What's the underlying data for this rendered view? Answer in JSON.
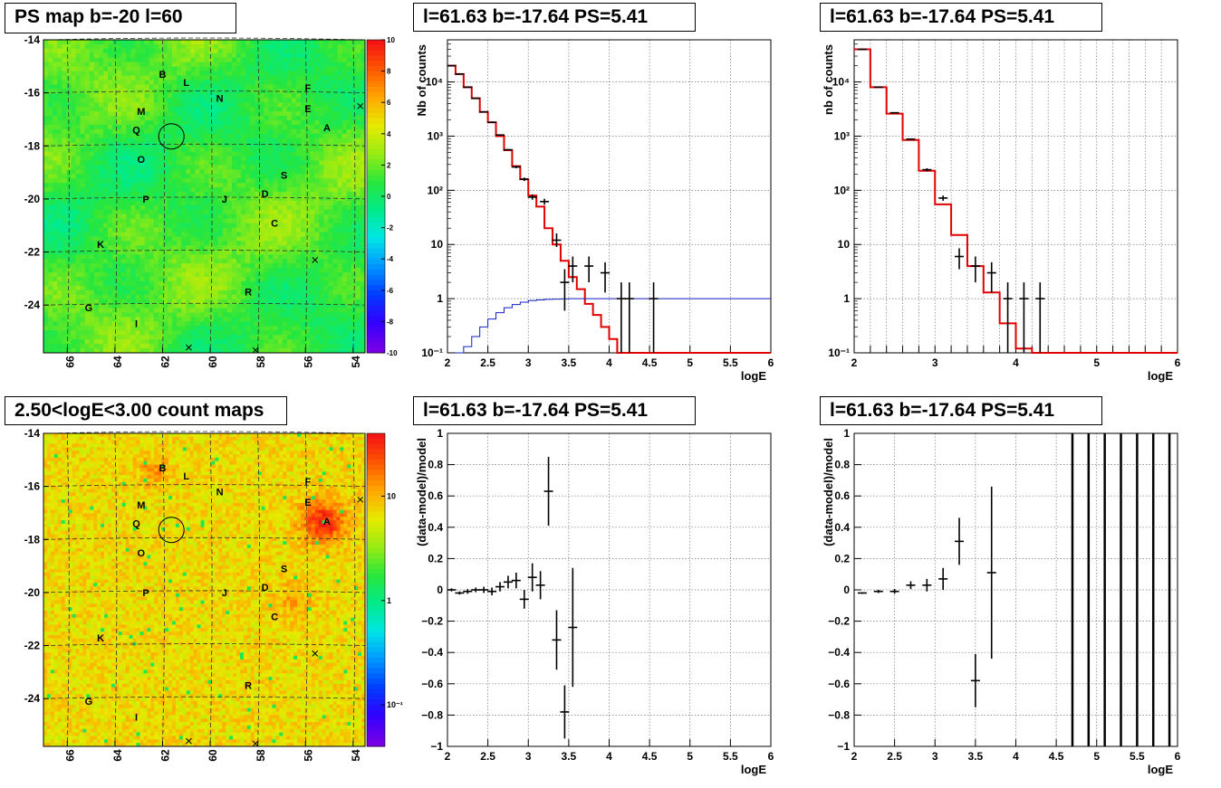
{
  "titles": {
    "map_top": "PS map b=-20 l=60",
    "map_bottom": "2.50<logE<3.00 count maps",
    "spec_left": "l=61.63 b=-17.64 PS=5.41",
    "spec_right": "l=61.63 b=-17.64 PS=5.41",
    "resid_left": "l=61.63 b=-17.64 PS=5.41",
    "resid_right": "l=61.63 b=-17.64 PS=5.41"
  },
  "chart_data": [
    {
      "id": "ps_map",
      "type": "heatmap",
      "title": "PS map b=-20 l=60",
      "xlim": [
        67,
        53.5
      ],
      "ylim": [
        -25.8,
        -14
      ],
      "x_ticks": [
        66,
        64,
        62,
        60,
        58,
        56,
        54
      ],
      "y_ticks": [
        -14,
        -16,
        -18,
        -20,
        -22,
        -24
      ],
      "colorbar": {
        "scale": "linear",
        "range": [
          -10,
          10
        ],
        "ticks": [
          10,
          8,
          6,
          4,
          2,
          0,
          -2,
          -4,
          -6,
          -8,
          -10
        ]
      },
      "sources": [
        {
          "label": "B",
          "l": 62.0,
          "b": -15.3
        },
        {
          "label": "L",
          "l": 61.0,
          "b": -15.6
        },
        {
          "label": "N",
          "l": 59.6,
          "b": -16.2
        },
        {
          "label": "F",
          "l": 55.9,
          "b": -15.8
        },
        {
          "label": "E",
          "l": 55.9,
          "b": -16.6
        },
        {
          "label": "M",
          "l": 62.9,
          "b": -16.7
        },
        {
          "label": "A",
          "l": 55.1,
          "b": -17.3
        },
        {
          "label": "Q",
          "l": 63.1,
          "b": -17.4
        },
        {
          "label": "O",
          "l": 62.9,
          "b": -18.5
        },
        {
          "label": "S",
          "l": 56.9,
          "b": -19.1
        },
        {
          "label": "D",
          "l": 57.7,
          "b": -19.8
        },
        {
          "label": "P",
          "l": 62.7,
          "b": -20.0
        },
        {
          "label": "J",
          "l": 59.4,
          "b": -20.0
        },
        {
          "label": "C",
          "l": 57.3,
          "b": -20.9
        },
        {
          "label": "K",
          "l": 64.6,
          "b": -21.7
        },
        {
          "label": "R",
          "l": 58.4,
          "b": -23.5
        },
        {
          "label": "G",
          "l": 65.1,
          "b": -24.1
        },
        {
          "label": "I",
          "l": 63.1,
          "b": -24.7
        }
      ]
    },
    {
      "id": "count_map",
      "type": "heatmap",
      "title": "2.50<logE<3.00 count maps",
      "xlim": [
        67,
        53.5
      ],
      "ylim": [
        -25.8,
        -14
      ],
      "x_ticks": [
        66,
        64,
        62,
        60,
        58,
        56,
        54
      ],
      "y_ticks": [
        -14,
        -16,
        -18,
        -20,
        -22,
        -24
      ],
      "colorbar": {
        "scale": "log",
        "range": [
          0.04,
          40
        ],
        "ticks": [
          "10",
          "1",
          "10⁻¹"
        ]
      }
    },
    {
      "id": "spectrum_left",
      "type": "line",
      "title": "l=61.63 b=-17.64 PS=5.41",
      "xlabel": "logE",
      "ylabel": "Nb of counts",
      "xlim": [
        2,
        6
      ],
      "ylim": [
        0.1,
        60000
      ],
      "yscale": "log",
      "x_ticks": [
        "2",
        "2.5",
        "3",
        "3.5",
        "4",
        "4.5",
        "5",
        "5.5",
        "6"
      ],
      "y_ticks": [
        "10⁻¹",
        "1",
        "10",
        "10²",
        "10³",
        "10⁴"
      ],
      "series": [
        {
          "color": "#e00000",
          "style": "step",
          "bin_width": 0.1,
          "bin_centers": [
            2.05,
            2.15,
            2.25,
            2.35,
            2.45,
            2.55,
            2.65,
            2.75,
            2.85,
            2.95,
            3.05,
            3.15,
            3.25,
            3.35,
            3.45,
            3.55,
            3.65,
            3.75,
            3.85,
            3.95,
            4.05,
            4.15,
            4.25,
            4.35,
            4.45,
            4.55,
            4.65,
            4.75,
            4.85,
            4.95,
            5.05,
            5.15,
            5.25,
            5.35,
            5.45,
            5.55,
            5.65,
            5.75,
            5.85,
            5.95
          ],
          "values": [
            20000,
            14000,
            8000,
            5000,
            2800,
            1800,
            1000,
            550,
            280,
            160,
            80,
            50,
            20,
            10,
            5,
            2.5,
            1.5,
            0.8,
            0.5,
            0.3,
            0.18,
            0.1,
            0.1,
            0.1,
            0.1,
            0.1,
            0.1,
            0.1,
            0.1,
            0.1,
            0.1,
            0.1,
            0.1,
            0.1,
            0.1,
            0.1,
            0.1,
            0.1,
            0.1,
            0.1
          ]
        },
        {
          "color": "#1020c0",
          "style": "step",
          "bin_width": 0.1,
          "bin_centers": [
            2.15,
            2.25,
            2.35,
            2.45,
            2.55,
            2.65,
            2.75,
            2.85,
            2.95,
            3.05,
            3.15,
            3.25,
            3.35,
            3.45,
            3.55,
            3.65,
            3.75,
            3.85,
            3.95,
            4.05,
            4.15,
            4.25,
            4.35,
            4.45,
            4.55,
            4.65,
            4.75,
            4.85,
            4.95,
            5.05,
            5.15,
            5.25,
            5.35,
            5.45,
            5.55,
            5.65,
            5.75,
            5.85,
            5.95
          ],
          "values": [
            0.1,
            0.13,
            0.2,
            0.3,
            0.42,
            0.55,
            0.68,
            0.78,
            0.86,
            0.92,
            0.95,
            0.97,
            0.98,
            0.99,
            1,
            1,
            1,
            1,
            1,
            1,
            1,
            1,
            1,
            1,
            1,
            1,
            1,
            1,
            1,
            1,
            1,
            1,
            1,
            1,
            1,
            1,
            1,
            1,
            1
          ]
        },
        {
          "color": "#000000",
          "style": "errorbar",
          "points": [
            {
              "x": 2.05,
              "y": 20000,
              "lo": 19800,
              "hi": 20200
            },
            {
              "x": 2.15,
              "y": 14000,
              "lo": 13900,
              "hi": 14100
            },
            {
              "x": 2.25,
              "y": 8000,
              "lo": 7900,
              "hi": 8100
            },
            {
              "x": 2.35,
              "y": 5000,
              "lo": 4930,
              "hi": 5070
            },
            {
              "x": 2.45,
              "y": 2800,
              "lo": 2750,
              "hi": 2850
            },
            {
              "x": 2.55,
              "y": 1800,
              "lo": 1760,
              "hi": 1840
            },
            {
              "x": 2.65,
              "y": 1050,
              "lo": 1020,
              "hi": 1080
            },
            {
              "x": 2.75,
              "y": 560,
              "lo": 540,
              "hi": 580
            },
            {
              "x": 2.85,
              "y": 270,
              "lo": 255,
              "hi": 285
            },
            {
              "x": 2.95,
              "y": 160,
              "lo": 148,
              "hi": 172
            },
            {
              "x": 3.05,
              "y": 75,
              "lo": 67,
              "hi": 84
            },
            {
              "x": 3.2,
              "y": 62,
              "lo": 54,
              "hi": 70
            },
            {
              "x": 3.35,
              "y": 12,
              "lo": 9,
              "hi": 16
            },
            {
              "x": 3.45,
              "y": 2,
              "lo": 0.6,
              "hi": 3.5
            },
            {
              "x": 3.55,
              "y": 4,
              "lo": 2,
              "hi": 6
            },
            {
              "x": 3.75,
              "y": 4,
              "lo": 2,
              "hi": 6
            },
            {
              "x": 3.95,
              "y": 3,
              "lo": 1.3,
              "hi": 4.7
            },
            {
              "x": 4.15,
              "y": 1,
              "lo": 0.1,
              "hi": 2
            },
            {
              "x": 4.25,
              "y": 1,
              "lo": 0.1,
              "hi": 2
            },
            {
              "x": 4.55,
              "y": 1,
              "lo": 0.1,
              "hi": 2
            }
          ]
        }
      ]
    },
    {
      "id": "spectrum_right",
      "type": "line",
      "title": "l=61.63 b=-17.64 PS=5.41",
      "xlabel": "logE",
      "ylabel": "nb of counts",
      "xlim": [
        2,
        6
      ],
      "ylim": [
        0.1,
        60000
      ],
      "yscale": "log",
      "x_ticks": [
        "2",
        "2.2",
        "2.4",
        "2.6",
        "2.8",
        "3",
        "3.2",
        "3.4",
        "3.6",
        "3.8",
        "4",
        "4.2",
        "4.4",
        "4.6",
        "4.8",
        "5",
        "5.2",
        "5.4",
        "5.6",
        "5.8",
        "6"
      ],
      "y_ticks": [
        "10⁻¹",
        "1",
        "10",
        "10²",
        "10³",
        "10⁴"
      ],
      "series": [
        {
          "color": "#e00000",
          "style": "step",
          "bin_width": 0.2,
          "bin_centers": [
            2.1,
            2.3,
            2.5,
            2.7,
            2.9,
            3.1,
            3.3,
            3.5,
            3.7,
            3.9,
            4.1,
            4.3,
            4.5,
            4.7,
            4.9,
            5.1,
            5.3,
            5.5,
            5.7,
            5.9
          ],
          "values": [
            40000,
            8000,
            2600,
            850,
            230,
            55,
            15,
            4,
            1.3,
            0.35,
            0.12,
            0.1,
            0.1,
            0.1,
            0.1,
            0.1,
            0.1,
            0.1,
            0.1,
            0.1
          ]
        },
        {
          "color": "#000000",
          "style": "errorbar",
          "points": [
            {
              "x": 2.1,
              "y": 40000,
              "lo": 39800,
              "hi": 40200
            },
            {
              "x": 2.3,
              "y": 8000,
              "lo": 7910,
              "hi": 8090
            },
            {
              "x": 2.5,
              "y": 2700,
              "lo": 2650,
              "hi": 2750
            },
            {
              "x": 2.7,
              "y": 880,
              "lo": 850,
              "hi": 910
            },
            {
              "x": 2.9,
              "y": 240,
              "lo": 225,
              "hi": 255
            },
            {
              "x": 3.1,
              "y": 72,
              "lo": 64,
              "hi": 80
            },
            {
              "x": 3.3,
              "y": 6,
              "lo": 3.5,
              "hi": 8.5
            },
            {
              "x": 3.5,
              "y": 4,
              "lo": 2,
              "hi": 6
            },
            {
              "x": 3.7,
              "y": 3,
              "lo": 1.3,
              "hi": 4.7
            },
            {
              "x": 3.9,
              "y": 1,
              "lo": 0.1,
              "hi": 2
            },
            {
              "x": 4.1,
              "y": 1,
              "lo": 0.1,
              "hi": 2
            },
            {
              "x": 4.3,
              "y": 1,
              "lo": 0.1,
              "hi": 2
            }
          ]
        }
      ]
    },
    {
      "id": "residual_left",
      "type": "scatter",
      "title": "l=61.63 b=-17.64 PS=5.41",
      "xlabel": "logE",
      "ylabel": "(data-model)/model",
      "xlim": [
        2,
        6
      ],
      "ylim": [
        -1,
        1
      ],
      "x_ticks": [
        "2",
        "2.5",
        "3",
        "3.5",
        "4",
        "4.5",
        "5",
        "5.5",
        "6"
      ],
      "y_ticks": [
        "1",
        "0.8",
        "0.6",
        "0.4",
        "0.2",
        "0",
        "−0.2",
        "−0.4",
        "−0.6",
        "−0.8",
        "−1"
      ],
      "points": [
        {
          "x": 2.05,
          "y": 0.0,
          "err": 0.01
        },
        {
          "x": 2.15,
          "y": -0.02,
          "err": 0.01
        },
        {
          "x": 2.25,
          "y": -0.01,
          "err": 0.015
        },
        {
          "x": 2.35,
          "y": 0.0,
          "err": 0.015
        },
        {
          "x": 2.45,
          "y": 0.0,
          "err": 0.02
        },
        {
          "x": 2.55,
          "y": -0.01,
          "err": 0.025
        },
        {
          "x": 2.65,
          "y": 0.02,
          "err": 0.03
        },
        {
          "x": 2.75,
          "y": 0.05,
          "err": 0.04
        },
        {
          "x": 2.85,
          "y": 0.06,
          "err": 0.05
        },
        {
          "x": 2.95,
          "y": -0.06,
          "err": 0.06
        },
        {
          "x": 3.05,
          "y": 0.08,
          "err": 0.09
        },
        {
          "x": 3.15,
          "y": 0.03,
          "err": 0.09
        },
        {
          "x": 3.25,
          "y": 0.63,
          "err": 0.22
        },
        {
          "x": 3.35,
          "y": -0.32,
          "err": 0.19
        },
        {
          "x": 3.45,
          "y": -0.78,
          "err": 0.17
        },
        {
          "x": 3.55,
          "y": -0.24,
          "err": 0.38
        }
      ]
    },
    {
      "id": "residual_right",
      "type": "scatter",
      "title": "l=61.63 b=-17.64 PS=5.41",
      "xlabel": "logE",
      "ylabel": "(data-model)/model",
      "xlim": [
        2,
        6
      ],
      "ylim": [
        -1,
        1
      ],
      "x_ticks": [
        "2",
        "2.5",
        "3",
        "3.5",
        "4",
        "4.5",
        "5",
        "5.5",
        "6"
      ],
      "y_ticks": [
        "1",
        "0.8",
        "0.6",
        "0.4",
        "0.2",
        "0",
        "−0.2",
        "−0.4",
        "−0.6",
        "−0.8",
        "−1"
      ],
      "points": [
        {
          "x": 2.1,
          "y": -0.02,
          "err": 0.005
        },
        {
          "x": 2.3,
          "y": -0.01,
          "err": 0.01
        },
        {
          "x": 2.5,
          "y": -0.01,
          "err": 0.015
        },
        {
          "x": 2.7,
          "y": 0.03,
          "err": 0.025
        },
        {
          "x": 2.9,
          "y": 0.03,
          "err": 0.04
        },
        {
          "x": 3.1,
          "y": 0.07,
          "err": 0.07
        },
        {
          "x": 3.3,
          "y": 0.31,
          "err": 0.15
        },
        {
          "x": 3.5,
          "y": -0.58,
          "err": 0.17
        },
        {
          "x": 3.7,
          "y": 0.11,
          "err": 0.55
        }
      ],
      "full_range_error_bars_x": [
        4.7,
        4.9,
        5.1,
        5.3,
        5.5,
        5.7,
        5.9
      ]
    }
  ]
}
